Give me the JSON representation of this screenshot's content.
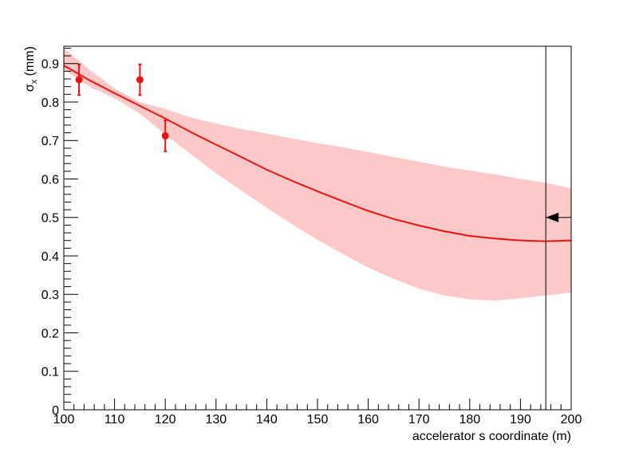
{
  "chart_data": {
    "type": "line",
    "title": "",
    "xlabel": "accelerator s coordinate (m)",
    "ylabel_main": "σ",
    "ylabel_sub": "x",
    "ylabel_unit": " (mm)",
    "xlim": [
      100,
      200
    ],
    "ylim": [
      0,
      0.945
    ],
    "x_ticks": [
      100,
      110,
      120,
      130,
      140,
      150,
      160,
      170,
      180,
      190,
      200
    ],
    "y_ticks": [
      0,
      0.1,
      0.2,
      0.3,
      0.4,
      0.5,
      0.6,
      0.7,
      0.8,
      0.9
    ],
    "y_tick_labels": [
      "0",
      "0.1",
      "0.2",
      "0.3",
      "0.4",
      "0.5",
      "0.6",
      "0.7",
      "0.8",
      "0.9"
    ],
    "grid": false,
    "colors": {
      "fit": "#ee1111",
      "band": "#fcc8c8",
      "points": "#ee1111",
      "frame": "#000000"
    },
    "fit_curve": {
      "x": [
        100,
        105,
        110,
        115,
        120,
        125,
        130,
        135,
        140,
        145,
        150,
        155,
        160,
        165,
        170,
        175,
        180,
        185,
        190,
        195,
        200
      ],
      "y": [
        0.895,
        0.857,
        0.823,
        0.79,
        0.757,
        0.722,
        0.689,
        0.657,
        0.624,
        0.595,
        0.568,
        0.542,
        0.517,
        0.496,
        0.479,
        0.464,
        0.452,
        0.445,
        0.44,
        0.438,
        0.44
      ]
    },
    "error_band": {
      "x": [
        100,
        105,
        110,
        115,
        120,
        125,
        130,
        135,
        140,
        145,
        150,
        155,
        160,
        165,
        170,
        175,
        180,
        185,
        190,
        195,
        200
      ],
      "upper": [
        0.94,
        0.885,
        0.835,
        0.8,
        0.782,
        0.76,
        0.744,
        0.73,
        0.718,
        0.705,
        0.693,
        0.682,
        0.67,
        0.657,
        0.645,
        0.632,
        0.622,
        0.612,
        0.6,
        0.59,
        0.575
      ],
      "lower": [
        0.885,
        0.84,
        0.81,
        0.77,
        0.715,
        0.665,
        0.615,
        0.57,
        0.525,
        0.482,
        0.442,
        0.405,
        0.37,
        0.34,
        0.315,
        0.297,
        0.287,
        0.284,
        0.29,
        0.297,
        0.305
      ]
    },
    "points": [
      {
        "x": 103,
        "y": 0.858,
        "err": 0.04
      },
      {
        "x": 115,
        "y": 0.858,
        "err": 0.04
      },
      {
        "x": 120,
        "y": 0.712,
        "err": 0.04
      }
    ],
    "marker_line_x": 195,
    "marker_arrow_y": 0.5
  }
}
